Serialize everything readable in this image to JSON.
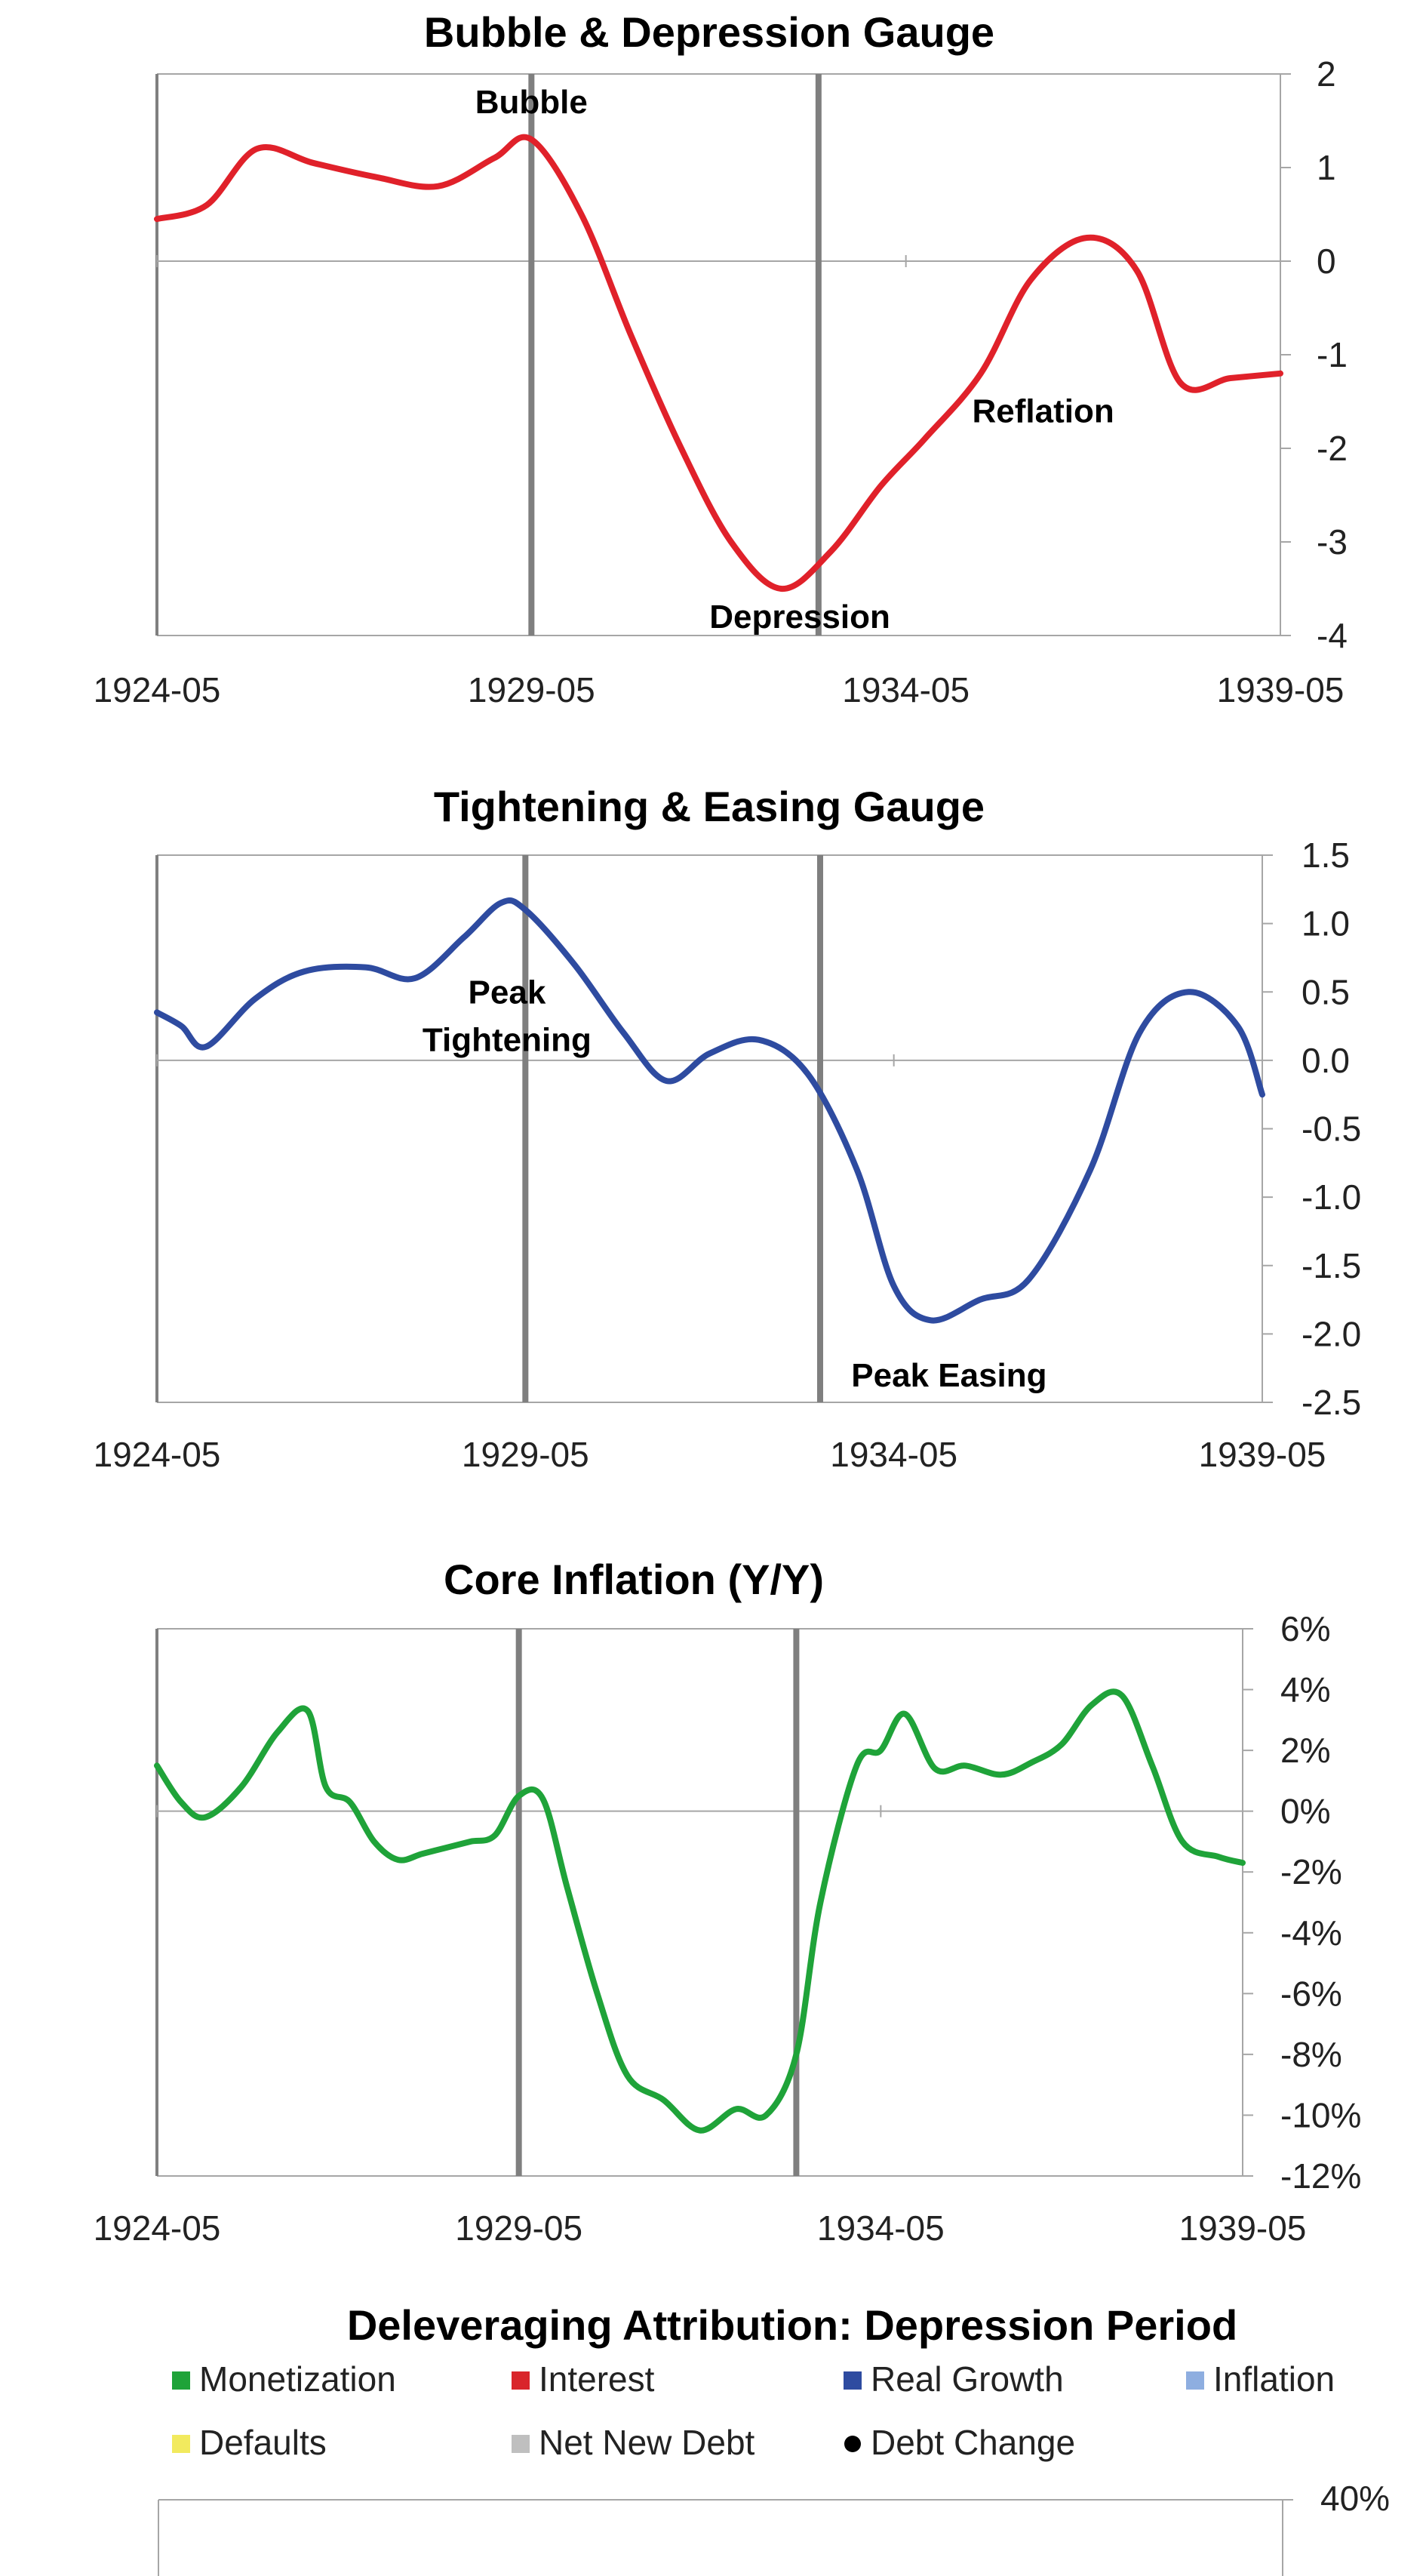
{
  "chart_data": [
    {
      "type": "line",
      "title": "Bubble & Depression Gauge",
      "x_tick_labels": [
        "1924-05",
        "1929-05",
        "1934-05",
        "1939-05"
      ],
      "y_tick_labels": [
        "2",
        "1",
        "0",
        "-1",
        "-2",
        "-3",
        "-4"
      ],
      "ylim": [
        -4,
        2
      ],
      "y_axis_side": "right",
      "x_range": [
        "1924-05",
        "1939-05"
      ],
      "vertical_markers": [
        "1929-05",
        "1933-03"
      ],
      "annotations": [
        {
          "text": "Bubble",
          "x": "1929-05",
          "y": 1.7
        },
        {
          "text": "Depression",
          "x": "1932-12",
          "y": -3.8
        },
        {
          "text": "Reflation",
          "x": "1936-03",
          "y": -1.6
        }
      ],
      "series": [
        {
          "color": "#e0212a",
          "x": [
            "1924-05",
            "1925-01",
            "1925-09",
            "1926-06",
            "1927-04",
            "1928-02",
            "1928-11",
            "1929-05",
            "1930-01",
            "1930-09",
            "1931-05",
            "1932-01",
            "1932-09",
            "1933-05",
            "1934-01",
            "1934-08",
            "1935-05",
            "1936-01",
            "1936-10",
            "1937-06",
            "1938-01",
            "1938-09",
            "1939-05"
          ],
          "values": [
            0.45,
            0.6,
            1.2,
            1.05,
            0.9,
            0.8,
            1.1,
            1.3,
            0.5,
            -0.8,
            -2.0,
            -3.0,
            -3.5,
            -3.1,
            -2.4,
            -1.9,
            -1.2,
            -0.2,
            0.25,
            -0.1,
            -1.3,
            -1.25,
            -1.2
          ]
        }
      ]
    },
    {
      "type": "line",
      "title": "Tightening & Easing Gauge",
      "x_tick_labels": [
        "1924-05",
        "1929-05",
        "1934-05",
        "1939-05"
      ],
      "y_tick_labels": [
        "1.5",
        "1.0",
        "0.5",
        "0.0",
        "-0.5",
        "-1.0",
        "-1.5",
        "-2.0",
        "-2.5"
      ],
      "ylim": [
        -2.5,
        1.5
      ],
      "y_axis_side": "right",
      "x_range": [
        "1924-05",
        "1939-05"
      ],
      "vertical_markers": [
        "1929-05",
        "1933-05"
      ],
      "annotations": [
        {
          "text": "Peak",
          "x": "1929-02",
          "y": 0.5
        },
        {
          "text": "Tightening",
          "x": "1929-02",
          "y": 0.15
        },
        {
          "text": "Peak Easing",
          "x": "1935-02",
          "y": -2.3
        }
      ],
      "series": [
        {
          "color": "#2e4ba0",
          "x": [
            "1924-05",
            "1924-09",
            "1925-01",
            "1925-09",
            "1926-05",
            "1927-03",
            "1927-11",
            "1928-07",
            "1929-01",
            "1929-05",
            "1930-01",
            "1930-09",
            "1931-04",
            "1931-11",
            "1932-07",
            "1933-03",
            "1933-11",
            "1934-05",
            "1934-11",
            "1935-07",
            "1936-03",
            "1937-01",
            "1937-09",
            "1938-05",
            "1939-01",
            "1939-05"
          ],
          "values": [
            0.35,
            0.25,
            0.1,
            0.45,
            0.65,
            0.68,
            0.6,
            0.9,
            1.15,
            1.1,
            0.7,
            0.2,
            -0.15,
            0.05,
            0.15,
            -0.1,
            -0.8,
            -1.65,
            -1.9,
            -1.75,
            -1.6,
            -0.8,
            0.2,
            0.5,
            0.25,
            -0.25
          ]
        }
      ]
    },
    {
      "type": "line",
      "title": "Core Inflation (Y/Y)",
      "x_tick_labels": [
        "1924-05",
        "1929-05",
        "1934-05",
        "1939-05"
      ],
      "y_tick_labels": [
        "6%",
        "4%",
        "2%",
        "0%",
        "-2%",
        "-4%",
        "-6%",
        "-8%",
        "-10%",
        "-12%"
      ],
      "ylim": [
        -12,
        6
      ],
      "y_axis_side": "right",
      "x_range": [
        "1924-05",
        "1939-05"
      ],
      "vertical_markers": [
        "1929-05",
        "1933-03"
      ],
      "annotations": [],
      "series": [
        {
          "color": "#1fa339",
          "x": [
            "1924-05",
            "1924-09",
            "1925-01",
            "1925-07",
            "1926-01",
            "1926-06",
            "1926-09",
            "1927-01",
            "1927-05",
            "1927-09",
            "1928-01",
            "1928-05",
            "1928-09",
            "1929-01",
            "1929-05",
            "1929-09",
            "1930-01",
            "1930-06",
            "1930-11",
            "1931-05",
            "1931-11",
            "1932-05",
            "1932-10",
            "1933-03",
            "1933-07",
            "1934-01",
            "1934-05",
            "1934-09",
            "1935-02",
            "1935-07",
            "1936-01",
            "1936-06",
            "1936-11",
            "1937-04",
            "1937-09",
            "1938-02",
            "1938-07",
            "1939-01",
            "1939-05"
          ],
          "values": [
            1.5,
            0.3,
            -0.2,
            0.8,
            2.6,
            3.3,
            0.8,
            0.3,
            -1.0,
            -1.6,
            -1.4,
            -1.2,
            -1.0,
            -0.8,
            0.5,
            0.4,
            -2.5,
            -6.0,
            -8.7,
            -9.5,
            -10.5,
            -9.8,
            -10.0,
            -8.0,
            -3.0,
            1.5,
            2.0,
            3.2,
            1.4,
            1.5,
            1.2,
            1.6,
            2.2,
            3.5,
            3.8,
            1.5,
            -1.0,
            -1.5,
            -1.7
          ]
        }
      ]
    },
    {
      "type": "bar",
      "title": "Deleveraging Attribution: Depression Period",
      "legend": [
        {
          "label": "Monetization",
          "color": "#1fa339",
          "marker": "square"
        },
        {
          "label": "Interest",
          "color": "#d9252a",
          "marker": "square"
        },
        {
          "label": "Real Growth",
          "color": "#2e4ba0",
          "marker": "square"
        },
        {
          "label": "Inflation",
          "color": "#8eaee0",
          "marker": "square"
        },
        {
          "label": "Defaults",
          "color": "#f2ea5e",
          "marker": "square"
        },
        {
          "label": "Net New Debt",
          "color": "#bfbfbf",
          "marker": "square"
        },
        {
          "label": "Debt Change",
          "color": "#000000",
          "marker": "circle"
        }
      ],
      "y_tick_labels": [
        "40%"
      ],
      "y_axis_side": "right"
    }
  ]
}
